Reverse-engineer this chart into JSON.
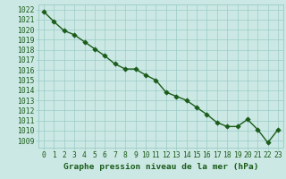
{
  "x": [
    0,
    1,
    2,
    3,
    4,
    5,
    6,
    7,
    8,
    9,
    10,
    11,
    12,
    13,
    14,
    15,
    16,
    17,
    18,
    19,
    20,
    21,
    22,
    23
  ],
  "y": [
    1021.8,
    1020.8,
    1019.9,
    1019.5,
    1018.8,
    1018.1,
    1017.4,
    1016.6,
    1016.1,
    1016.1,
    1015.5,
    1015.0,
    1013.8,
    1013.4,
    1013.0,
    1012.3,
    1011.6,
    1010.8,
    1010.4,
    1010.4,
    1011.1,
    1010.1,
    1008.8,
    1010.1
  ],
  "line_color": "#1a5c1a",
  "marker_color": "#1a5c1a",
  "bg_color": "#cce8e4",
  "grid_color": "#99ccc6",
  "title": "Graphe pression niveau de la mer (hPa)",
  "xlim": [
    -0.5,
    23.5
  ],
  "ylim": [
    1008.3,
    1022.5
  ],
  "yticks": [
    1009,
    1010,
    1011,
    1012,
    1013,
    1014,
    1015,
    1016,
    1017,
    1018,
    1019,
    1020,
    1021,
    1022
  ],
  "xticks": [
    0,
    1,
    2,
    3,
    4,
    5,
    6,
    7,
    8,
    9,
    10,
    11,
    12,
    13,
    14,
    15,
    16,
    17,
    18,
    19,
    20,
    21,
    22,
    23
  ],
  "tick_label_color": "#1a5c1a",
  "title_color": "#1a5c1a",
  "title_fontsize": 6.8,
  "tick_fontsize": 5.8,
  "linewidth": 1.0,
  "markersize": 2.8
}
